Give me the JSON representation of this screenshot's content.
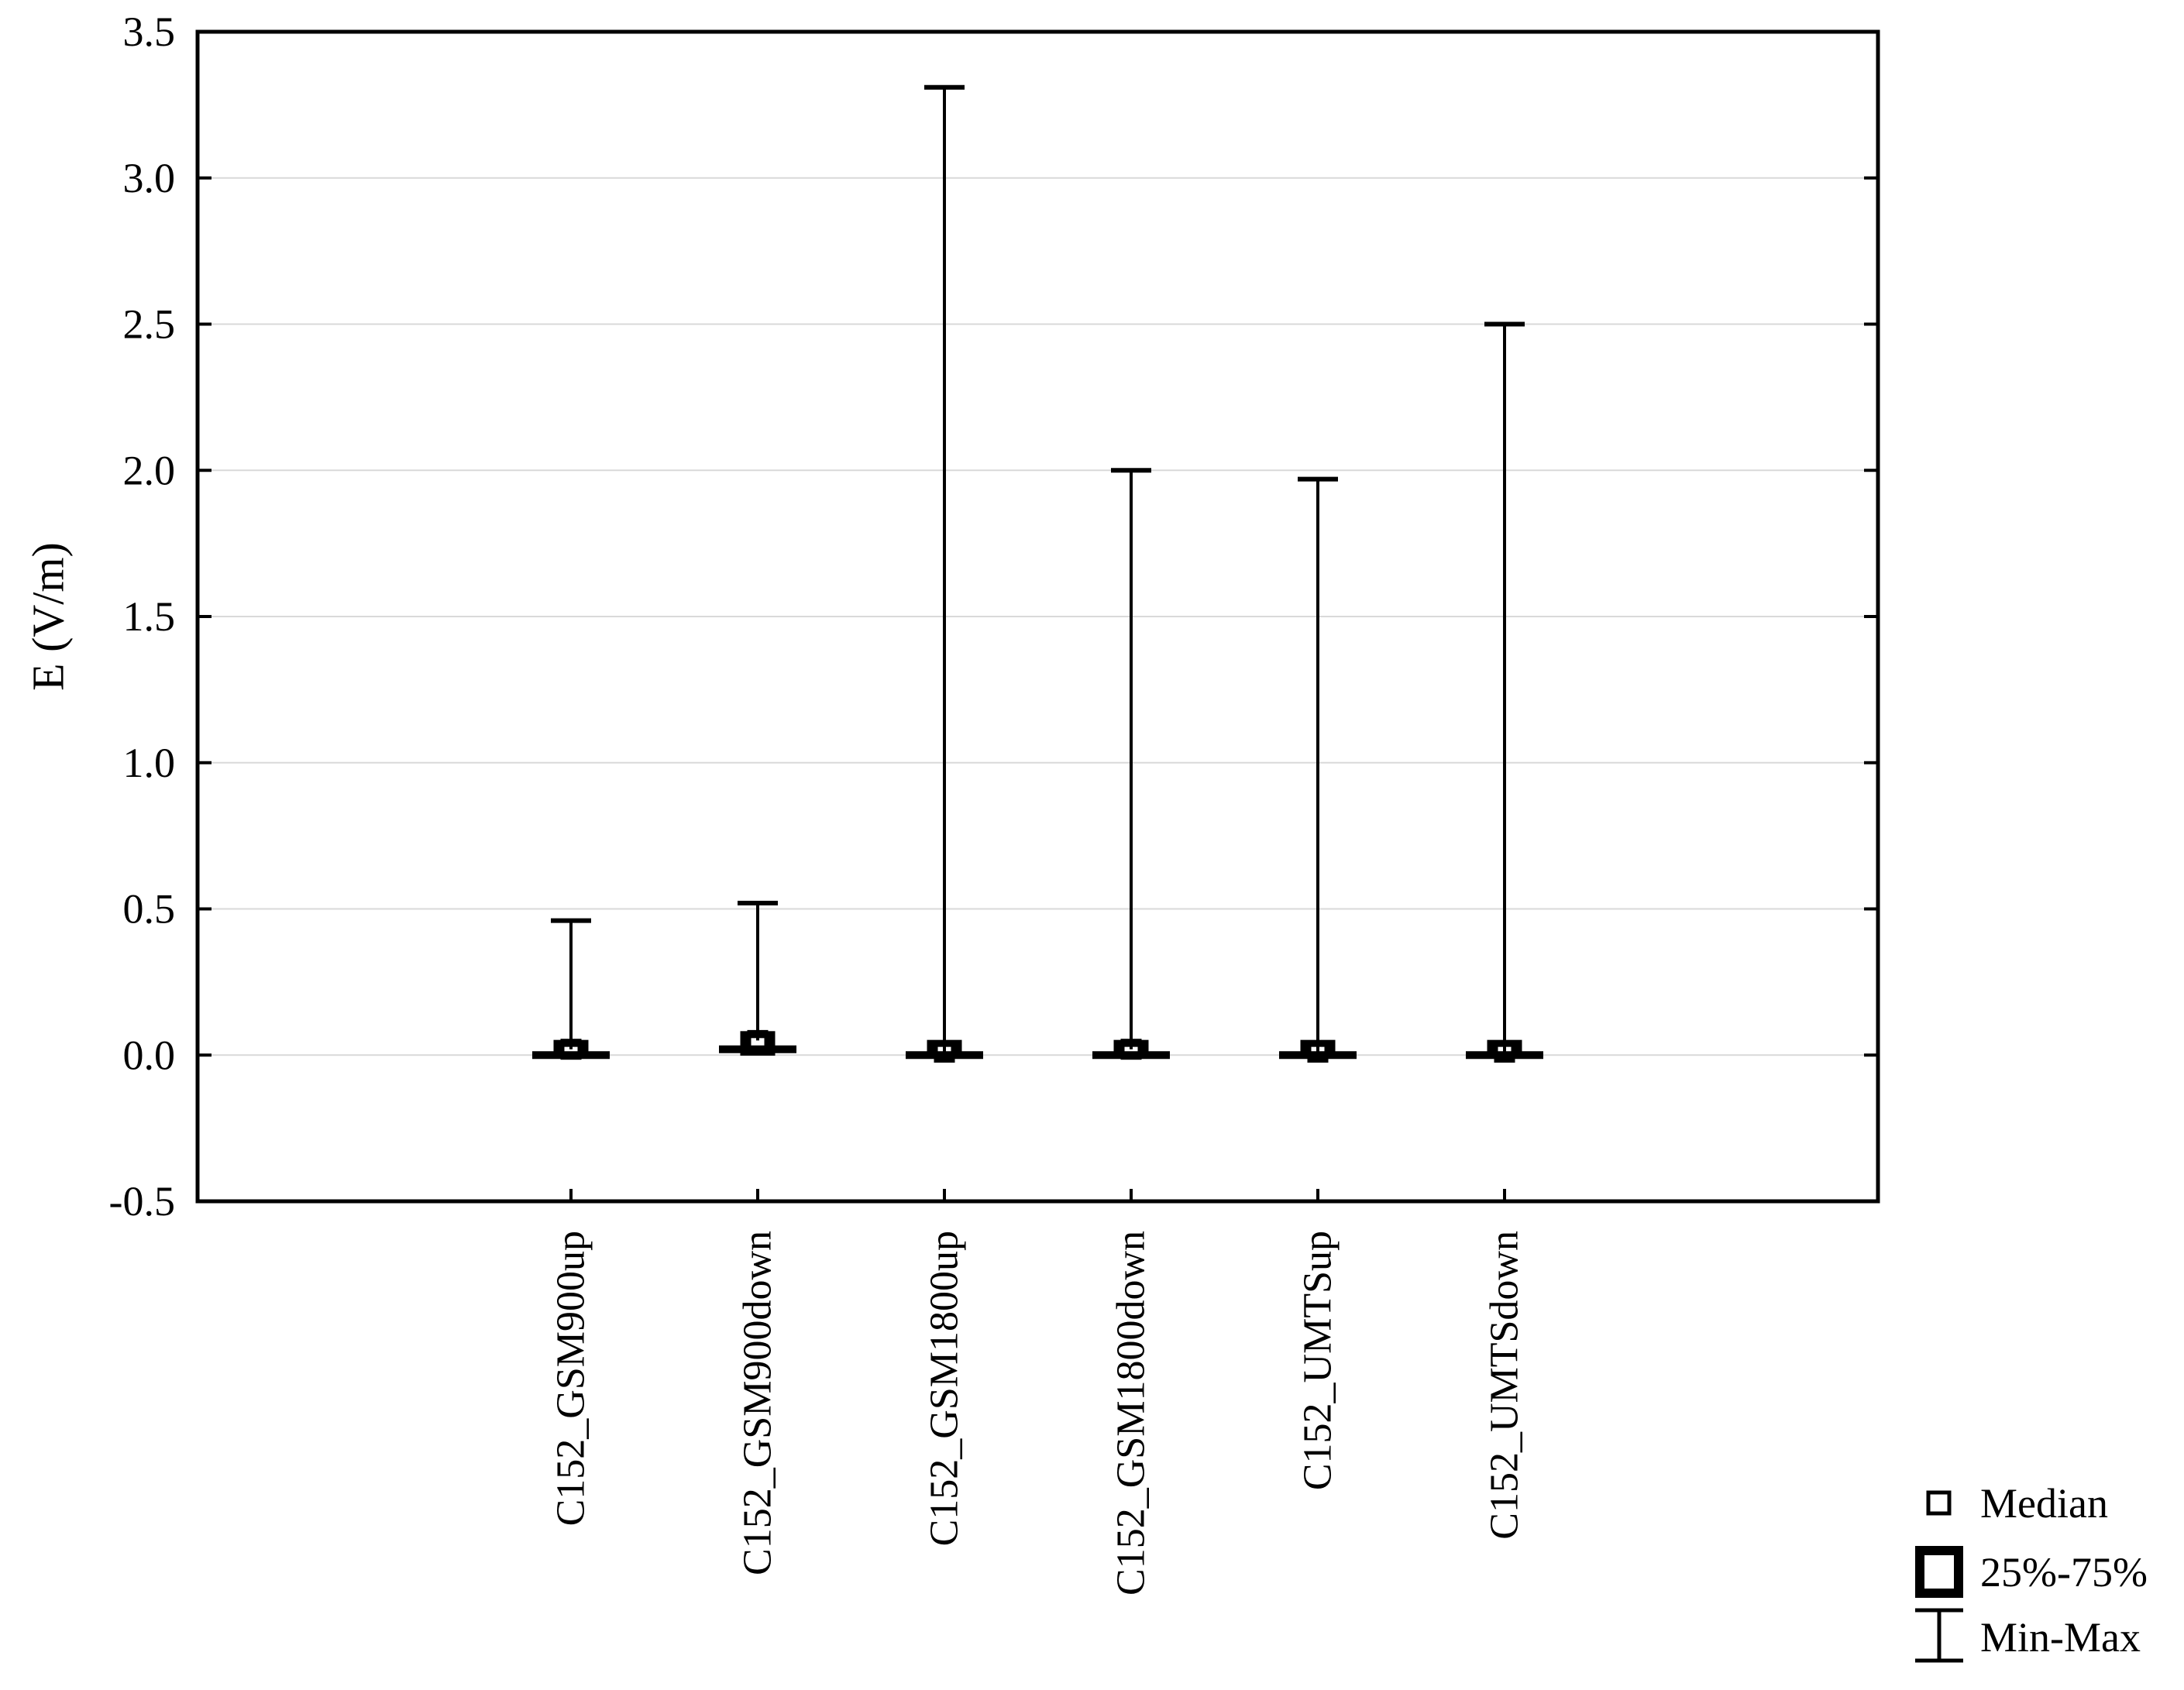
{
  "chart_data": {
    "type": "box",
    "title": "",
    "xlabel": "",
    "ylabel": "E (V/m)",
    "ylim": [
      -0.5,
      3.5
    ],
    "ytick_step": 0.5,
    "y_tick_labels": [
      "3.5",
      "3.0",
      "2.5",
      "2.0",
      "1.5",
      "1.0",
      "0.5",
      "0.0",
      "-0.5"
    ],
    "grid": "horizontal",
    "categories": [
      "C152_GSM900up",
      "C152_GSM900down",
      "C152_GSM1800up",
      "C152_GSM1800down",
      "C152_UMTSup",
      "C152_UMTSdown"
    ],
    "boxes": [
      {
        "category": "C152_GSM900up",
        "min": 0.0,
        "q1": 0.0,
        "median": 0.02,
        "q3": 0.04,
        "max": 0.46
      },
      {
        "category": "C152_GSM900down",
        "min": 0.02,
        "q1": 0.01,
        "median": 0.05,
        "q3": 0.07,
        "max": 0.52
      },
      {
        "category": "C152_GSM1800up",
        "min": 0.0,
        "q1": 0.0,
        "median": 0.01,
        "q3": 0.04,
        "max": 3.31
      },
      {
        "category": "C152_GSM1800down",
        "min": 0.0,
        "q1": 0.0,
        "median": 0.02,
        "q3": 0.04,
        "max": 2.0
      },
      {
        "category": "C152_UMTSup",
        "min": 0.0,
        "q1": 0.0,
        "median": 0.01,
        "q3": 0.04,
        "max": 1.97
      },
      {
        "category": "C152_UMTSdown",
        "min": 0.0,
        "q1": 0.0,
        "median": 0.01,
        "q3": 0.04,
        "max": 2.5
      }
    ],
    "legend": {
      "position": "bottom-right",
      "items": [
        {
          "marker": "median-square",
          "label": "Median"
        },
        {
          "marker": "iqr-box",
          "label": "25%-75%"
        },
        {
          "marker": "min-max-whisker",
          "label": "Min-Max"
        }
      ]
    },
    "colors": {
      "foreground": "#000000",
      "background": "#ffffff",
      "grid": "#d9d9d9"
    }
  }
}
